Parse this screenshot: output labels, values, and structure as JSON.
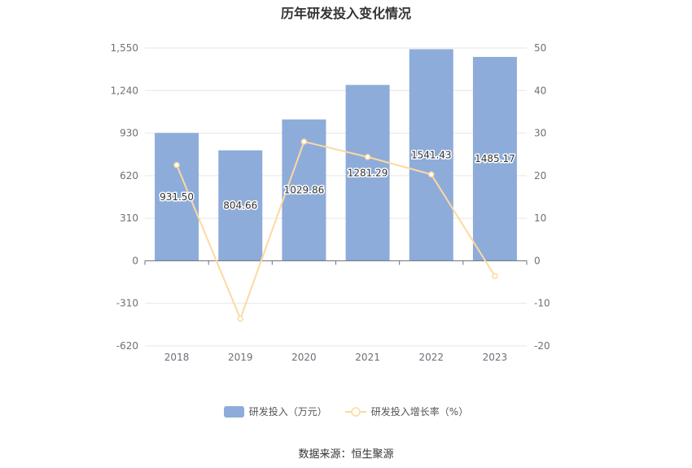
{
  "title": "历年研发投入变化情况",
  "source_text": "数据来源：恒生聚源",
  "colors": {
    "bar": "#8eacda",
    "line": "#fdd9a0",
    "grid": "#e6e6e6",
    "axis": "#6e7079"
  },
  "chart_data": {
    "type": "bar",
    "title": "历年研发投入变化情况",
    "categories": [
      "2018",
      "2019",
      "2020",
      "2021",
      "2022",
      "2023"
    ],
    "series": [
      {
        "name": "研发投入（万元）",
        "type": "bar",
        "axis": "left",
        "values": [
          931.5,
          804.66,
          1029.86,
          1281.29,
          1541.43,
          1485.17
        ],
        "labels": [
          "931.50",
          "804.66",
          "1029.86",
          "1281.29",
          "1541.43",
          "1485.17"
        ]
      },
      {
        "name": "研发投入增长率（%）",
        "type": "line",
        "axis": "right",
        "values": [
          22.5,
          -13.6,
          28.0,
          24.4,
          20.3,
          -3.6
        ]
      }
    ],
    "y_left": {
      "ylim": [
        -620,
        1550
      ],
      "ticks": [
        -620,
        -310,
        0,
        310,
        620,
        930,
        1240,
        1550
      ],
      "tick_labels": [
        "-620",
        "-310",
        "0",
        "310",
        "620",
        "930",
        "1,240",
        "1,550"
      ]
    },
    "y_right": {
      "ylim": [
        -20,
        50
      ],
      "ticks": [
        -20,
        -10,
        0,
        10,
        20,
        30,
        40,
        50
      ],
      "tick_labels": [
        "-20",
        "-10",
        "0",
        "10",
        "20",
        "30",
        "40",
        "50"
      ]
    },
    "grid": true,
    "legend_position": "bottom"
  }
}
